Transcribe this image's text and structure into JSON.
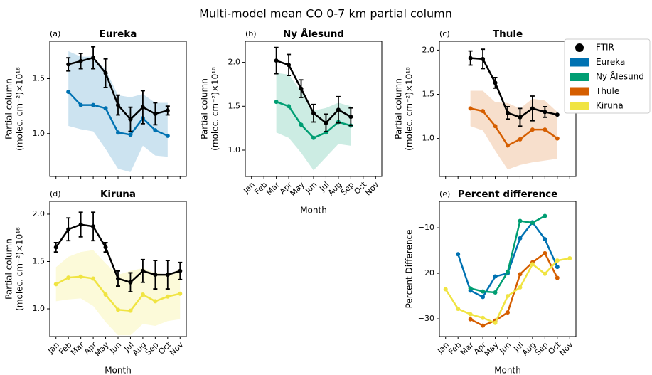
{
  "title": "Multi-model mean CO 0-7 km partial column",
  "months": [
    "Jan",
    "Feb",
    "Mar",
    "Apr",
    "May",
    "Jun",
    "Jul",
    "Aug",
    "Sep",
    "Oct",
    "Nov"
  ],
  "legend": [
    {
      "name": "FTIR",
      "color": "#000000",
      "marker": "circle"
    },
    {
      "name": "Eureka",
      "color": "#0072b2",
      "marker": "patch"
    },
    {
      "name": "Ny Ålesund",
      "color": "#009e73",
      "marker": "patch"
    },
    {
      "name": "Thule",
      "color": "#d55e00",
      "marker": "patch"
    },
    {
      "name": "Kiruna",
      "color": "#f0e442",
      "marker": "patch"
    }
  ],
  "chart_data": [
    {
      "type": "line",
      "label": "(a)",
      "title": "Eureka",
      "ylabel": [
        "Partial column",
        "(molec. cm⁻²)×10¹⁸"
      ],
      "ylim": [
        0.61,
        1.84
      ],
      "yticks": [
        {
          "value": 1,
          "label": "1.0"
        },
        {
          "value": 1.5,
          "label": "1.5"
        }
      ],
      "series": [
        {
          "color": "#0072b2",
          "values": [
            null,
            1.38,
            1.26,
            1.26,
            1.23,
            1.01,
            0.99,
            1.14,
            1.03,
            0.98,
            null
          ],
          "band_low": [
            null,
            1.07,
            1.04,
            1.02,
            0.86,
            0.68,
            0.65,
            0.89,
            0.8,
            0.79,
            null
          ],
          "band_high": [
            null,
            1.75,
            1.7,
            1.7,
            1.58,
            1.35,
            1.33,
            1.36,
            1.28,
            1.28,
            null
          ]
        },
        {
          "color": "#000000",
          "values": [
            null,
            1.63,
            1.66,
            1.69,
            1.55,
            1.26,
            1.13,
            1.24,
            1.18,
            1.21,
            null
          ],
          "errors": [
            null,
            0.06,
            0.07,
            0.1,
            0.13,
            0.09,
            0.11,
            0.15,
            0.1,
            0.04,
            null
          ]
        }
      ]
    },
    {
      "type": "line",
      "label": "(b)",
      "title": "Ny Ålesund",
      "ylabel": [
        "Partial column",
        "(molec. cm⁻²)×10¹⁸"
      ],
      "xlabel": "Month",
      "ylim": [
        0.7,
        2.24
      ],
      "yticks": [
        {
          "value": 1,
          "label": "1.0"
        },
        {
          "value": 1.5,
          "label": "1.5"
        },
        {
          "value": 2,
          "label": "2.0"
        }
      ],
      "series": [
        {
          "color": "#009e73",
          "values": [
            null,
            null,
            1.55,
            1.5,
            1.29,
            1.14,
            1.2,
            1.32,
            1.28,
            null,
            null
          ],
          "band_low": [
            null,
            null,
            1.2,
            1.14,
            0.97,
            0.77,
            0.92,
            1.07,
            1.05,
            null,
            null
          ],
          "band_high": [
            null,
            null,
            1.88,
            1.86,
            1.67,
            1.45,
            1.48,
            1.54,
            1.5,
            null,
            null
          ]
        },
        {
          "color": "#000000",
          "values": [
            null,
            null,
            2.02,
            1.97,
            1.7,
            1.42,
            1.31,
            1.46,
            1.38,
            null,
            null
          ],
          "errors": [
            null,
            null,
            0.15,
            0.12,
            0.1,
            0.1,
            0.1,
            0.15,
            0.1,
            null,
            null
          ]
        }
      ]
    },
    {
      "type": "line",
      "label": "(c)",
      "title": "Thule",
      "ylabel": [
        "Partial column",
        "(molec. cm⁻²)×10¹⁸"
      ],
      "ylim": [
        0.57,
        2.1
      ],
      "yticks": [
        {
          "value": 1,
          "label": "1.0"
        },
        {
          "value": 1.5,
          "label": "1.5"
        },
        {
          "value": 2,
          "label": "2.0"
        }
      ],
      "series": [
        {
          "color": "#d55e00",
          "values": [
            null,
            null,
            1.34,
            1.31,
            1.14,
            0.92,
            0.99,
            1.1,
            1.1,
            1.0,
            null
          ],
          "band_low": [
            null,
            null,
            1.14,
            1.09,
            0.86,
            0.65,
            0.7,
            0.73,
            0.75,
            0.77,
            null
          ],
          "band_high": [
            null,
            null,
            1.54,
            1.54,
            1.41,
            1.4,
            1.34,
            1.45,
            1.43,
            1.3,
            null
          ]
        },
        {
          "color": "#000000",
          "values": [
            null,
            null,
            1.91,
            1.9,
            1.63,
            1.29,
            1.24,
            1.34,
            1.3,
            1.27,
            null
          ],
          "errors": [
            null,
            null,
            0.08,
            0.11,
            0.06,
            0.07,
            0.1,
            0.14,
            0.06,
            null,
            null
          ]
        }
      ]
    },
    {
      "type": "line",
      "label": "(d)",
      "title": "Kiruna",
      "ylabel": [
        "Partial column",
        "(molec. cm⁻²)×10¹⁸"
      ],
      "xlabel": "Month",
      "ylim": [
        0.707,
        2.135
      ],
      "yticks": [
        {
          "value": 1,
          "label": "1.0"
        },
        {
          "value": 1.5,
          "label": "1.5"
        },
        {
          "value": 2,
          "label": "2.0"
        }
      ],
      "series": [
        {
          "color": "#f0e442",
          "values": [
            1.26,
            1.33,
            1.34,
            1.32,
            1.15,
            0.99,
            0.98,
            1.15,
            1.08,
            1.13,
            1.16
          ],
          "band_low": [
            1.08,
            1.1,
            1.11,
            1.03,
            0.86,
            0.72,
            0.72,
            0.84,
            0.82,
            0.87,
            0.89
          ],
          "band_high": [
            1.44,
            1.55,
            1.6,
            1.62,
            1.48,
            1.36,
            1.4,
            1.43,
            1.38,
            1.36,
            1.42
          ]
        },
        {
          "color": "#000000",
          "values": [
            1.65,
            1.84,
            1.89,
            1.87,
            1.65,
            1.32,
            1.28,
            1.4,
            1.36,
            1.36,
            1.4
          ],
          "errors": [
            0.05,
            0.12,
            0.13,
            0.15,
            0.05,
            0.08,
            0.1,
            0.12,
            0.15,
            0.15,
            0.09
          ]
        }
      ]
    },
    {
      "type": "line",
      "label": "(e)",
      "title": "Percent difference",
      "ylabel": [
        "Percent Difference"
      ],
      "xlabel": "Month",
      "ylim": [
        -33.9,
        -4.2
      ],
      "yticks": [
        {
          "value": -10,
          "label": "−10"
        },
        {
          "value": -20,
          "label": "−20"
        },
        {
          "value": -30,
          "label": "−30"
        }
      ],
      "series": [
        {
          "color": "#0072b2",
          "values": [
            null,
            -15.8,
            -23.8,
            -25.2,
            -20.7,
            -20.0,
            -12.3,
            -8.8,
            -12.5,
            -18.6,
            null
          ]
        },
        {
          "color": "#009e73",
          "values": [
            null,
            null,
            -23.3,
            -24.0,
            -24.2,
            -19.7,
            -8.5,
            -8.9,
            -7.4,
            null,
            null
          ]
        },
        {
          "color": "#d55e00",
          "values": [
            null,
            null,
            -30.1,
            -31.5,
            -30.4,
            -28.6,
            -20.2,
            -17.6,
            -15.6,
            -21.0,
            null
          ]
        },
        {
          "color": "#f0e442",
          "values": [
            -23.5,
            -27.8,
            -29.0,
            -29.8,
            -30.9,
            -25.0,
            -23.1,
            -18.0,
            -20.1,
            -17.2,
            -16.7
          ]
        }
      ]
    }
  ]
}
